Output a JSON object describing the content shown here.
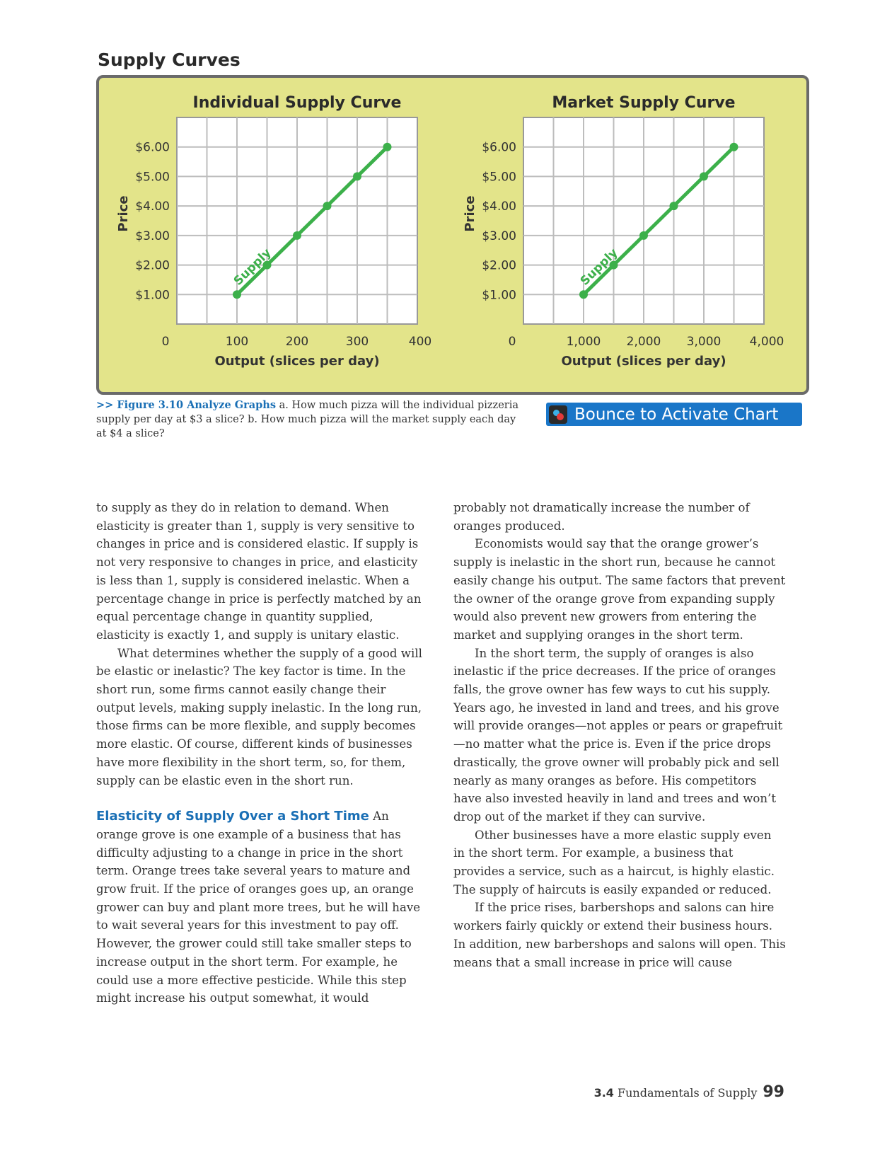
{
  "page": {
    "section_title": "Supply Curves",
    "caption_prefix": ">> Figure 3.10 Analyze Graphs",
    "caption_text": " a. How much pizza will the individual pizzeria supply per day at $3 a slice? b. How much pizza will the market supply each day at $4 a slice?",
    "bounce_label": "Bounce to Activate Chart",
    "footer_section": "3.4",
    "footer_title": "Fundamentals of Supply",
    "footer_page": "99"
  },
  "chart_data": [
    {
      "type": "line",
      "title": "Individual Supply Curve",
      "xlabel": "Output (slices per day)",
      "ylabel": "Price",
      "x_ticks": [
        "0",
        "100",
        "200",
        "300",
        "400"
      ],
      "y_ticks": [
        "$1.00",
        "$2.00",
        "$3.00",
        "$4.00",
        "$5.00",
        "$6.00"
      ],
      "xlim": [
        0,
        400
      ],
      "ylim": [
        0,
        7
      ],
      "grid": true,
      "series": [
        {
          "name": "Supply",
          "color": "#3cb04a",
          "x": [
            100,
            150,
            200,
            250,
            300,
            350
          ],
          "y": [
            1,
            2,
            3,
            4,
            5,
            6
          ]
        }
      ]
    },
    {
      "type": "line",
      "title": "Market Supply Curve",
      "xlabel": "Output (slices per day)",
      "ylabel": "Price",
      "x_ticks": [
        "0",
        "1,000",
        "2,000",
        "3,000",
        "4,000"
      ],
      "y_ticks": [
        "$1.00",
        "$2.00",
        "$3.00",
        "$4.00",
        "$5.00",
        "$6.00"
      ],
      "xlim": [
        0,
        4000
      ],
      "ylim": [
        0,
        7
      ],
      "grid": true,
      "series": [
        {
          "name": "Supply",
          "color": "#3cb04a",
          "x": [
            1000,
            1500,
            2000,
            2500,
            3000,
            3500
          ],
          "y": [
            1,
            2,
            3,
            4,
            5,
            6
          ]
        }
      ]
    }
  ],
  "body": {
    "left": {
      "p1": "to supply as they do in relation to demand. When elasticity is greater than 1, supply is very sensitive to changes in price and is considered elastic. If supply is not very responsive to changes in price, and elasticity is less than 1, supply is considered inelastic. When a percentage change in price is perfectly matched by an equal percentage change in quantity supplied, elasticity is exactly 1, and supply is unitary elastic.",
      "p2": "What determines whether the supply of a good will be elastic or inelastic? The key factor is time. In the short run, some firms cannot easily change their output levels, making supply inelastic. In the long run, those firms can be more flexible, and supply becomes more elastic. Of course, different kinds of businesses have more flexibility in the short term, so, for them, supply can be elastic even in the short run.",
      "heading": "Elasticity of Supply Over a Short Time",
      "p3": " An orange grove is one example of a business that has difficulty adjusting to a change in price in the short term. Orange trees take several years to mature and grow fruit. If the price of oranges goes up, an orange grower can buy and plant more trees, but he will have to wait several years for this investment to pay off. However, the grower could still take smaller steps to increase output in the short term. For example, he could use a more effective pesticide. While this step might increase his output somewhat, it would"
    },
    "right": {
      "p1": "probably not dramatically increase the number of oranges produced.",
      "p2": "Economists would say that the orange grower’s supply is inelastic in the short run, because he cannot easily change his output. The same factors that prevent the owner of the orange grove from expanding supply would also prevent new growers from entering the market and supplying oranges in the short term.",
      "p3": "In the short term, the supply of oranges is also inelastic if the price decreases. If the price of oranges falls, the grove owner has few ways to cut his supply. Years ago, he invested in land and trees, and his grove will provide oranges—not apples or pears or grapefruit—no matter what the price is. Even if the price drops drastically, the grove owner will probably pick and sell nearly as many oranges as before. His competitors have also invested heavily in land and trees and won’t drop out of the market if they can survive.",
      "p4": "Other businesses have a more elastic supply even in the short term. For example, a business that provides a service, such as a haircut, is highly elastic. The supply of haircuts is easily expanded or reduced.",
      "p5": "If the price rises, barbershops and salons can hire workers fairly quickly or extend their business hours. In addition, new barbershops and salons will open. This means that a small increase in price will cause"
    }
  }
}
